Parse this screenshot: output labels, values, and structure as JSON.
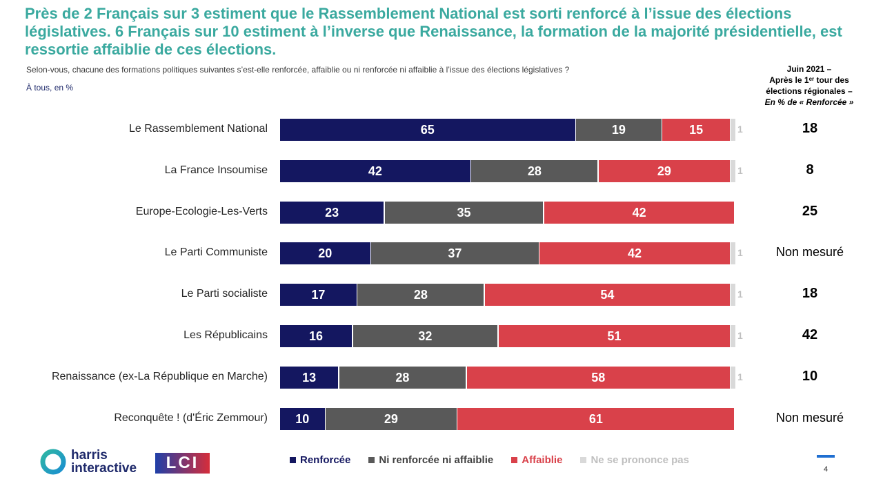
{
  "title": "Près de 2 Français sur 3 estiment que le Rassemblement National est sorti renforcé à l’issue des élections législatives. 6 Français sur 10 estiment à l’inverse que Renaissance, la formation de la majorité présidentielle, est ressortie affaiblie de ces élections.",
  "question": "Selon-vous, chacune des formations politiques suivantes s’est-elle renforcée, affaiblie ou ni renforcée ni affaiblie à l’issue des élections législatives ?",
  "base": "À tous, en %",
  "reference_header": {
    "line1": "Juin 2021 –",
    "line2_pre": "Après le 1",
    "line2_sup": "er",
    "line2_post": " tour des",
    "line3": "élections régionales –",
    "line4": "En % de « Renforcée »"
  },
  "colors": {
    "title": "#3aa99f",
    "renforcee": "#141760",
    "ni": "#595959",
    "affaiblie": "#d9414a",
    "nsp": "#d9d9d9"
  },
  "legend": [
    {
      "label": "Renforcée",
      "color": "#141760",
      "text_color": "#141760"
    },
    {
      "label": "Ni renforcée ni affaiblie",
      "color": "#595959",
      "text_color": "#404040"
    },
    {
      "label": "Affaiblie",
      "color": "#d9414a",
      "text_color": "#d9414a"
    },
    {
      "label": "Ne se prononce pas",
      "color": "#d9d9d9",
      "text_color": "#bfbfbf"
    }
  ],
  "chart_data": {
    "type": "bar",
    "orientation": "horizontal",
    "stacked": true,
    "xlim": [
      0,
      100
    ],
    "categories": [
      "Le Rassemblement National",
      "La France Insoumise",
      "Europe-Ecologie-Les-Verts",
      "Le Parti Communiste",
      "Le Parti socialiste",
      "Les Républicains",
      "Renaissance (ex-La République en Marche)",
      "Reconquête ! (d'Éric Zemmour)"
    ],
    "series": [
      {
        "name": "Renforcée",
        "values": [
          65,
          42,
          23,
          20,
          17,
          16,
          13,
          10
        ]
      },
      {
        "name": "Ni renforcée ni affaiblie",
        "values": [
          19,
          28,
          35,
          37,
          28,
          32,
          28,
          29
        ]
      },
      {
        "name": "Affaiblie",
        "values": [
          15,
          29,
          42,
          42,
          54,
          51,
          58,
          61
        ]
      },
      {
        "name": "Ne se prononce pas",
        "values": [
          1,
          1,
          null,
          1,
          1,
          1,
          1,
          null
        ]
      }
    ],
    "reference": {
      "name": "Juin 2021 – En % de « Renforcée »",
      "values": [
        "18",
        "8",
        "25",
        "Non mesuré",
        "18",
        "42",
        "10",
        "Non mesuré"
      ]
    }
  },
  "footer": {
    "harris_line1": "harris",
    "harris_line2": "interactive",
    "lci": "LCI",
    "page_number": "4"
  }
}
